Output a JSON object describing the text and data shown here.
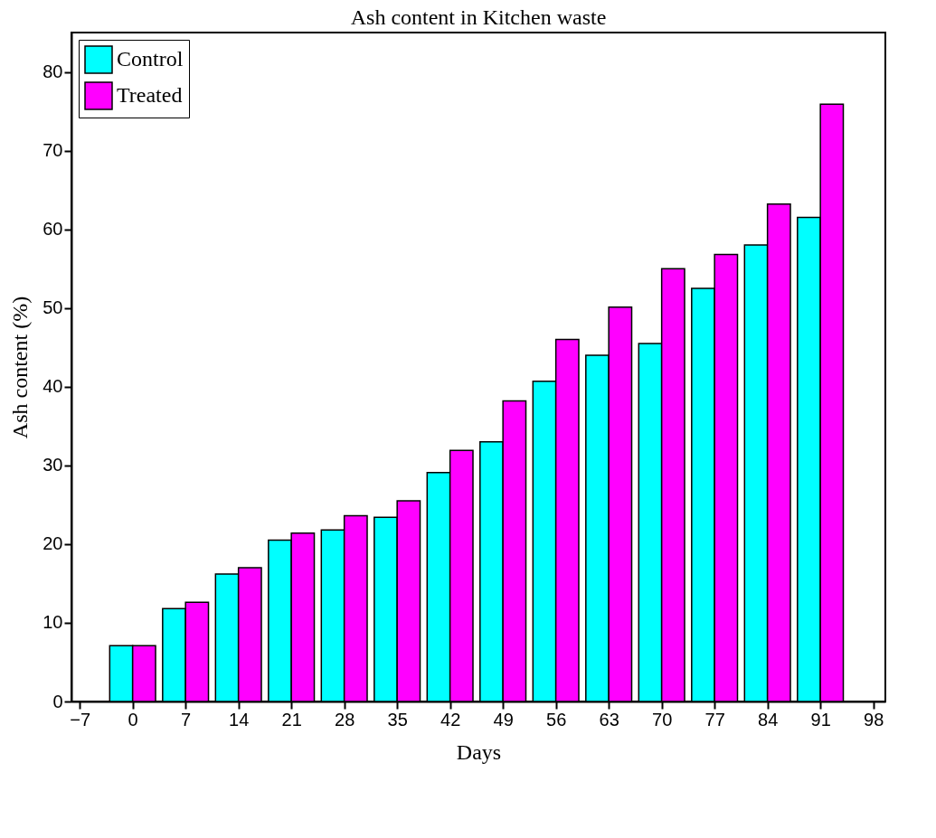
{
  "chart_data": {
    "type": "bar",
    "title": "Ash content in Kitchen waste",
    "xlabel": "Days",
    "ylabel": "Ash content (%)",
    "x": [
      0,
      7,
      14,
      21,
      28,
      35,
      42,
      49,
      56,
      63,
      70,
      77,
      84,
      91
    ],
    "series": [
      {
        "name": "Control",
        "color": "#00ffff",
        "values": [
          7.1,
          11.8,
          16.2,
          20.5,
          21.8,
          23.4,
          29.1,
          33.0,
          40.7,
          44.0,
          45.5,
          52.5,
          58.0,
          61.5
        ]
      },
      {
        "name": "Treated",
        "color": "#ff00ff",
        "values": [
          7.1,
          12.6,
          17.0,
          21.4,
          23.6,
          25.5,
          31.9,
          38.2,
          46.0,
          50.1,
          55.0,
          56.8,
          63.2,
          75.9
        ]
      }
    ],
    "xlim": [
      -7.5,
      99
    ],
    "xticks": [
      -7,
      0,
      7,
      14,
      21,
      28,
      35,
      42,
      49,
      56,
      63,
      70,
      77,
      84,
      91,
      98
    ],
    "ylim": [
      0,
      85
    ],
    "yticks": [
      0,
      10,
      20,
      30,
      40,
      50,
      60,
      70,
      80
    ],
    "grid": false,
    "legend": "top left"
  }
}
